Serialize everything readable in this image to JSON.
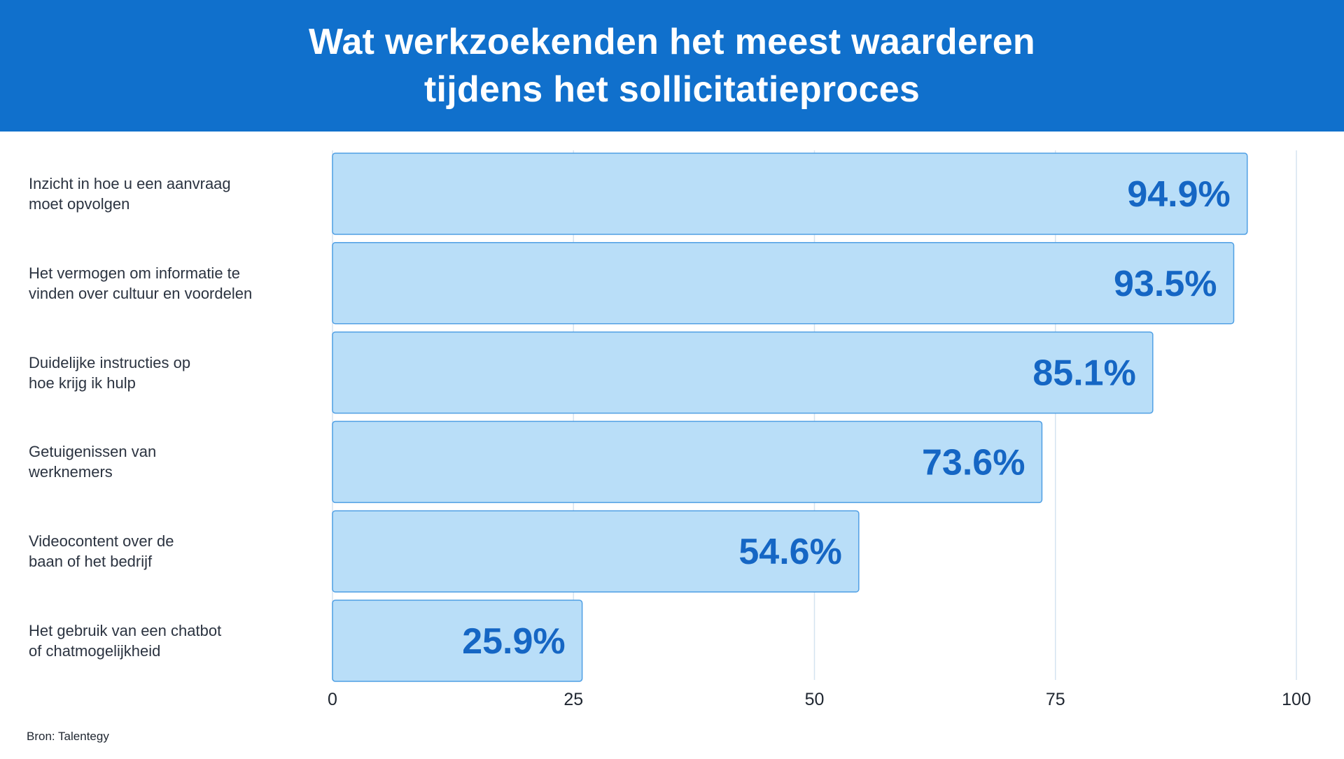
{
  "header": {
    "title_line1": "Wat werkzoekenden het meest waarderen",
    "title_line2": "tijdens het sollicitatieproces"
  },
  "colors": {
    "header_bg": "#1070cc",
    "bar_fill": "#b9def8",
    "bar_stroke": "#4f9fe4",
    "value_text": "#1566c4",
    "grid": "#d5e3f0"
  },
  "chart_data": {
    "type": "bar",
    "orientation": "horizontal",
    "title": "Wat werkzoekenden het meest waarderen tijdens het sollicitatieproces",
    "categories": [
      [
        "Inzicht in hoe u een aanvraag",
        "moet opvolgen"
      ],
      [
        "Het vermogen om informatie te",
        "vinden over cultuur en voordelen"
      ],
      [
        "Duidelijke instructies op",
        "hoe krijg ik hulp"
      ],
      [
        "Getuigenissen van",
        "werknemers"
      ],
      [
        "Videocontent over de",
        "baan of het bedrijf"
      ],
      [
        "Het gebruik van een chatbot",
        "of chatmogelijkheid"
      ]
    ],
    "values": [
      94.9,
      93.5,
      85.1,
      73.6,
      54.6,
      25.9
    ],
    "value_labels": [
      "94.9%",
      "93.5%",
      "85.1%",
      "73.6%",
      "54.6%",
      "25.9%"
    ],
    "xlim": [
      0,
      100
    ],
    "xticks": [
      "0",
      "25",
      "50",
      "75",
      "100"
    ],
    "grid": true,
    "xlabel": "",
    "ylabel": ""
  },
  "footer": {
    "source": "Bron: Talentegy"
  }
}
